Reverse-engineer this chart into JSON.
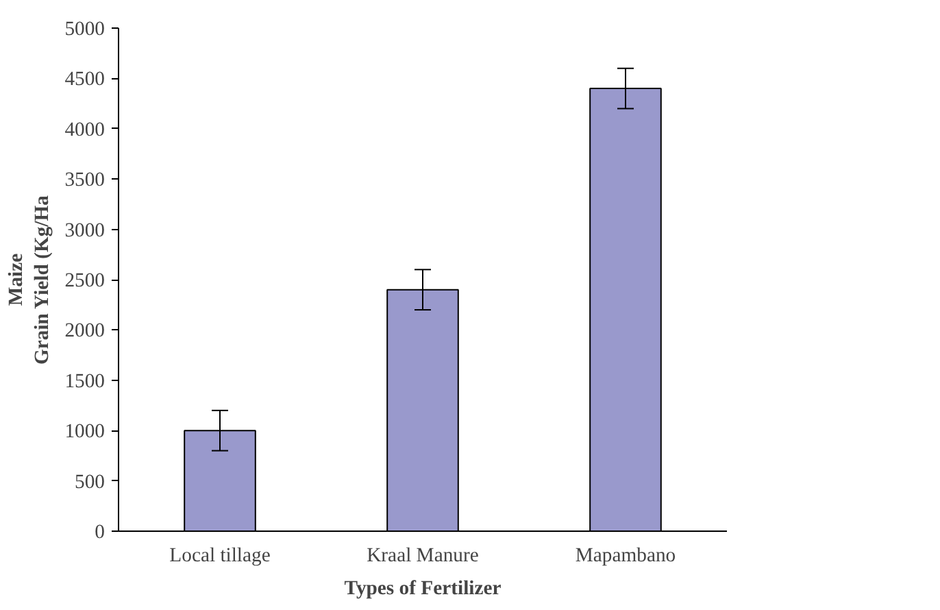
{
  "chart_data": {
    "type": "bar",
    "xlabel": "Types of Fertilizer",
    "ylabel": "Maize\nGrain Yield (Kg/Ha",
    "categories": [
      "Local tillage",
      "Kraal Manure",
      "Mapambano"
    ],
    "values": [
      1000,
      2400,
      4400
    ],
    "errors": [
      200,
      200,
      200
    ],
    "color": "#9999cc",
    "ylim": [
      0,
      5000
    ],
    "yticks": [
      0,
      500,
      1000,
      1500,
      2000,
      2500,
      3000,
      3500,
      4000,
      4500,
      5000
    ],
    "grid": false
  }
}
